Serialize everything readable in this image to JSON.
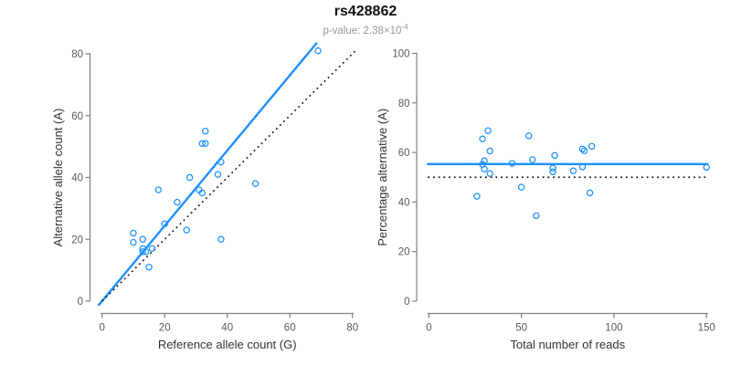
{
  "figure": {
    "title": "rs428862",
    "subtitle_prefix": "p-value: 2.38×10",
    "subtitle_exponent": "-4"
  },
  "colors": {
    "accent_blue": "#1e90ff",
    "dotted_line": "#1a1a1a",
    "axis_line": "#808080",
    "tick_text": "#5a5a5a",
    "label_text": "#333333",
    "title_text": "#111111",
    "subtitle_text": "#979797",
    "background": "#ffffff"
  },
  "chart_data": [
    {
      "type": "scatter",
      "panel": "left",
      "xlabel": "Reference allele count (G)",
      "ylabel": "Alternative allele count (A)",
      "xlim": [
        0,
        80
      ],
      "ylim": [
        0,
        80
      ],
      "xticks": [
        0,
        20,
        40,
        60,
        80
      ],
      "yticks": [
        0,
        20,
        40,
        60,
        80
      ],
      "grid": false,
      "legend": "none",
      "points": [
        [
          10,
          19
        ],
        [
          10,
          22
        ],
        [
          13,
          16
        ],
        [
          13,
          17
        ],
        [
          13,
          20
        ],
        [
          14,
          16
        ],
        [
          15,
          11
        ],
        [
          16,
          17
        ],
        [
          18,
          36
        ],
        [
          20,
          25
        ],
        [
          24,
          32
        ],
        [
          27,
          23
        ],
        [
          28,
          40
        ],
        [
          31,
          36
        ],
        [
          32,
          35
        ],
        [
          32,
          51
        ],
        [
          33,
          51
        ],
        [
          33,
          55
        ],
        [
          37,
          41
        ],
        [
          38,
          20
        ],
        [
          38,
          45
        ],
        [
          49,
          38
        ],
        [
          69,
          81
        ]
      ],
      "lines": [
        {
          "name": "regression-line",
          "style": "solid",
          "color_key": "accent_blue",
          "slope": 1.22,
          "intercept": 0,
          "from": [
            -1,
            -1.2
          ],
          "to": [
            68.5,
            83.4
          ]
        },
        {
          "name": "identity-line",
          "style": "dotted",
          "color_key": "dotted_line",
          "slope": 1,
          "intercept": 0,
          "from": [
            0,
            0
          ],
          "to": [
            81,
            81
          ]
        }
      ]
    },
    {
      "type": "scatter",
      "panel": "right",
      "xlabel": "Total number of reads",
      "ylabel": "Percentage alternative (A)",
      "xlim": [
        0,
        150
      ],
      "ylim": [
        0,
        100
      ],
      "xticks": [
        0,
        50,
        100,
        150
      ],
      "yticks": [
        0,
        20,
        40,
        60,
        80,
        100
      ],
      "grid": false,
      "legend": "none",
      "points": [
        [
          26,
          42.3
        ],
        [
          29,
          55.2
        ],
        [
          29,
          65.5
        ],
        [
          30,
          53.3
        ],
        [
          30,
          56.7
        ],
        [
          32,
          68.8
        ],
        [
          33,
          51.5
        ],
        [
          33,
          60.6
        ],
        [
          45,
          55.6
        ],
        [
          50,
          46.0
        ],
        [
          54,
          66.7
        ],
        [
          56,
          57.1
        ],
        [
          58,
          34.5
        ],
        [
          67,
          52.2
        ],
        [
          67,
          53.7
        ],
        [
          68,
          58.8
        ],
        [
          78,
          52.6
        ],
        [
          83,
          54.2
        ],
        [
          83,
          61.4
        ],
        [
          84,
          60.7
        ],
        [
          87,
          43.7
        ],
        [
          88,
          62.5
        ],
        [
          150,
          54.0
        ]
      ],
      "lines": [
        {
          "name": "mean-percentage-line",
          "style": "solid",
          "color_key": "accent_blue",
          "value": 55.3,
          "from": [
            -0.5,
            55.3
          ],
          "to": [
            150.5,
            55.3
          ]
        },
        {
          "name": "expected-proportion-line",
          "style": "dotted",
          "color_key": "dotted_line",
          "value": 50,
          "from": [
            -0.5,
            50
          ],
          "to": [
            150.5,
            50
          ]
        }
      ]
    }
  ]
}
